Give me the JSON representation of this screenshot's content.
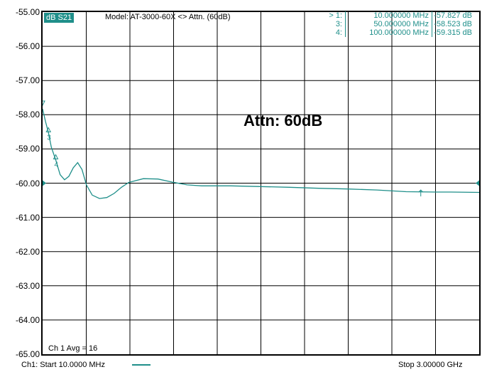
{
  "colors": {
    "trace": "#1f8f8a",
    "grid": "#000000",
    "background": "#ffffff"
  },
  "header": {
    "param_label": "dB S21",
    "model_label": "Model: AT-3000-60X <> Attn. (60dB)"
  },
  "markers": [
    {
      "id": "> 1:",
      "frequency": "10.000000 MHz",
      "value": "-57.827 dB"
    },
    {
      "id": "3:",
      "frequency": "50.000000 MHz",
      "value": "-58.523 dB"
    },
    {
      "id": "4:",
      "frequency": "100.000000 MHz",
      "value": "-59.315 dB"
    }
  ],
  "annotation": "Attn: 60dB",
  "avg_label": "Ch 1 Avg =   16",
  "footer": {
    "start_label": "Ch1: Start  10.0000 MHz",
    "stop_label": "Stop  3.00000 GHz"
  },
  "chart_data": {
    "type": "line",
    "title": "",
    "xlabel": "",
    "ylabel": "",
    "xlim": [
      0.01,
      3.0
    ],
    "ylim": [
      -65.0,
      -55.0
    ],
    "x_unit": "GHz",
    "y_unit": "dB",
    "x_divisions": 10,
    "grid": true,
    "yticks": [
      -55,
      -56,
      -57,
      -58,
      -59,
      -60,
      -61,
      -62,
      -63,
      -64,
      -65
    ],
    "ytick_labels": [
      "-55.00",
      "-56.00",
      "-57.00",
      "-58.00",
      "-59.00",
      "-60.00",
      "-61.00",
      "-62.00",
      "-63.00",
      "-64.00",
      "-65.00"
    ],
    "reference_level": -60.0,
    "series": [
      {
        "values_x": [
          0.01,
          0.03,
          0.05,
          0.07,
          0.1,
          0.13,
          0.16,
          0.19,
          0.22,
          0.25,
          0.28,
          0.31,
          0.35,
          0.4,
          0.45,
          0.5,
          0.55,
          0.6,
          0.7,
          0.8,
          0.9,
          1.0,
          1.1,
          1.3,
          1.5,
          1.7,
          1.9,
          2.1,
          2.3,
          2.5,
          2.7,
          2.8,
          3.0
        ],
        "values_y": [
          -57.83,
          -58.2,
          -58.52,
          -58.95,
          -59.32,
          -59.75,
          -59.9,
          -59.8,
          -59.55,
          -59.4,
          -59.6,
          -60.05,
          -60.35,
          -60.45,
          -60.42,
          -60.3,
          -60.12,
          -59.98,
          -59.87,
          -59.88,
          -59.97,
          -60.05,
          -60.08,
          -60.08,
          -60.1,
          -60.12,
          -60.15,
          -60.17,
          -60.2,
          -60.25,
          -60.26,
          -60.26,
          -60.27
        ]
      }
    ],
    "marker_points": [
      {
        "label": "1",
        "x": 0.01,
        "y": -57.827
      },
      {
        "label": "3",
        "x": 0.05,
        "y": -58.523
      },
      {
        "label": "4",
        "x": 0.1,
        "y": -59.315
      }
    ],
    "extra_marker": {
      "x": 2.6,
      "y": -60.2
    }
  }
}
